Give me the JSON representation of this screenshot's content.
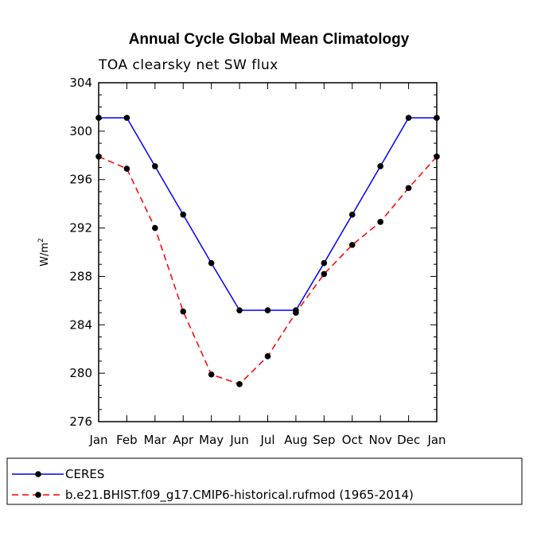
{
  "chart_data": {
    "type": "line",
    "title": "Annual Cycle Global Mean Climatology",
    "subtitle": "TOA clearsky net SW flux",
    "xlabel": "",
    "ylabel": "W/m",
    "ylabel_superscript": "2",
    "categories": [
      "Jan",
      "Feb",
      "Mar",
      "Apr",
      "May",
      "Jun",
      "Jul",
      "Aug",
      "Sep",
      "Oct",
      "Nov",
      "Dec",
      "Jan"
    ],
    "ylim": [
      276,
      304
    ],
    "yticks": [
      276,
      280,
      284,
      288,
      292,
      296,
      300,
      304
    ],
    "series": [
      {
        "name": "CERES",
        "color": "#0000ff",
        "dash": "solid",
        "values": [
          301.1,
          301.1,
          297.1,
          293.1,
          289.1,
          285.2,
          285.2,
          285.2,
          289.1,
          293.1,
          297.1,
          301.1,
          301.1
        ]
      },
      {
        "name": "b.e21.BHIST.f09_g17.CMIP6-historical.rufmod (1965-2014)",
        "color": "#ff0000",
        "dash": "dashed",
        "values": [
          297.9,
          296.9,
          292.0,
          285.1,
          279.9,
          279.1,
          281.4,
          285.0,
          288.2,
          290.6,
          292.5,
          295.3,
          297.9
        ]
      }
    ],
    "legend_position": "bottom"
  }
}
